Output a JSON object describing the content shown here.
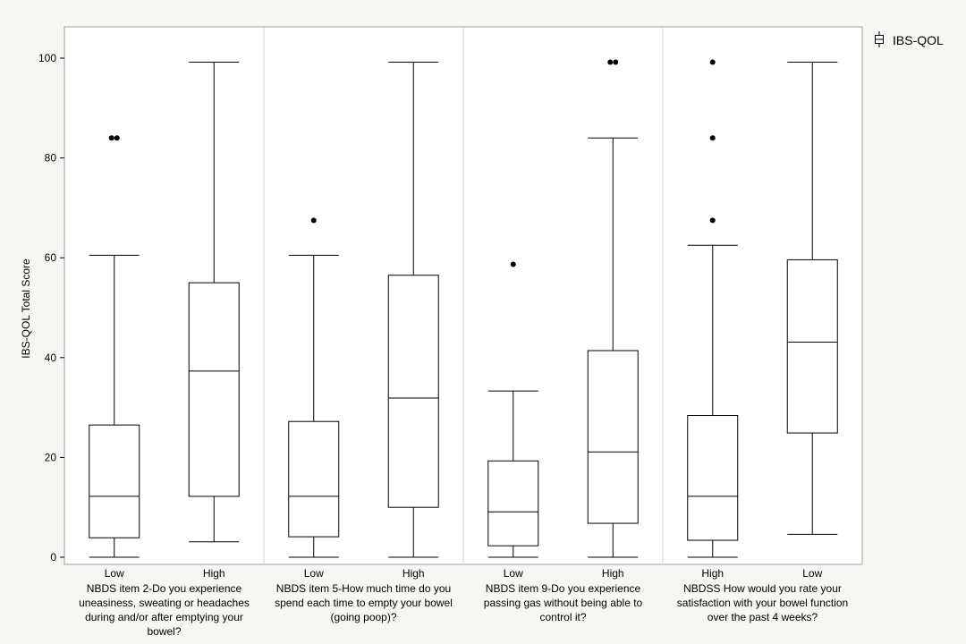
{
  "chart_data": {
    "type": "box",
    "title": "",
    "xlabel": "",
    "ylabel": "IBS-QOL Total Score",
    "ylim": [
      0,
      106
    ],
    "yticks": [
      0,
      20,
      40,
      60,
      80,
      100
    ],
    "grid": false,
    "legend": {
      "position": "top-right",
      "entries": [
        "IBS-QOL"
      ]
    },
    "groups": [
      {
        "label": "NBDS item 2-Do you experience uneasiness, sweating or headaches during and/or after emptying your bowel?",
        "label_lines": [
          "NBDS item 2-Do you experience",
          "uneasiness, sweating or headaches",
          "during and/or after emptying your",
          "bowel?"
        ],
        "boxes": [
          {
            "category": "Low",
            "whisker_low": 0,
            "q1": 3.9,
            "median": 12.2,
            "q3": 26.5,
            "whisker_high": 60.5,
            "outliers": [
              84,
              84
            ]
          },
          {
            "category": "High",
            "whisker_low": 3.1,
            "q1": 12.2,
            "median": 37.3,
            "q3": 55,
            "whisker_high": 99.2,
            "outliers": []
          }
        ]
      },
      {
        "label": "NBDS item 5-How much time do you spend each time to empty your bowel (going poop)?",
        "label_lines": [
          "NBDS item 5-How much time do you",
          "spend each time to empty your bowel",
          "(going poop)?"
        ],
        "boxes": [
          {
            "category": "Low",
            "whisker_low": 0,
            "q1": 4.1,
            "median": 12.2,
            "q3": 27.2,
            "whisker_high": 60.5,
            "outliers": [
              67.5
            ]
          },
          {
            "category": "High",
            "whisker_low": 0,
            "q1": 10,
            "median": 31.9,
            "q3": 56.5,
            "whisker_high": 99.2,
            "outliers": []
          }
        ]
      },
      {
        "label": "NBDS item 9-Do you experience passing gas without being able to control it?",
        "label_lines": [
          "NBDS item 9-Do you experience",
          "passing gas without being able to",
          "control it?"
        ],
        "boxes": [
          {
            "category": "Low",
            "whisker_low": 0,
            "q1": 2.3,
            "median": 9.1,
            "q3": 19.3,
            "whisker_high": 33.3,
            "outliers": [
              58.7
            ]
          },
          {
            "category": "High",
            "whisker_low": 0,
            "q1": 6.8,
            "median": 21.1,
            "q3": 41.4,
            "whisker_high": 84,
            "outliers": [
              99.2,
              99.2
            ]
          }
        ]
      },
      {
        "label": "NBDSS How would you rate your satisfaction with your bowel function over the past 4 weeks?",
        "label_lines": [
          "NBDSS How would you rate your",
          "satisfaction with your bowel function",
          "over the past 4 weeks?"
        ],
        "boxes": [
          {
            "category": "High",
            "whisker_low": 0,
            "q1": 3.4,
            "median": 12.2,
            "q3": 28.4,
            "whisker_high": 62.5,
            "outliers": [
              67.5,
              84,
              99.2
            ]
          },
          {
            "category": "Low",
            "whisker_low": 4.6,
            "q1": 24.9,
            "median": 43.1,
            "q3": 59.6,
            "whisker_high": 99.2,
            "outliers": []
          }
        ]
      }
    ]
  },
  "colors": {
    "background": "#f6f6f2",
    "plot_area": "#ffffff",
    "frame": "#a0a0a0",
    "separator": "#d6d6d6",
    "ink": "#000000"
  }
}
